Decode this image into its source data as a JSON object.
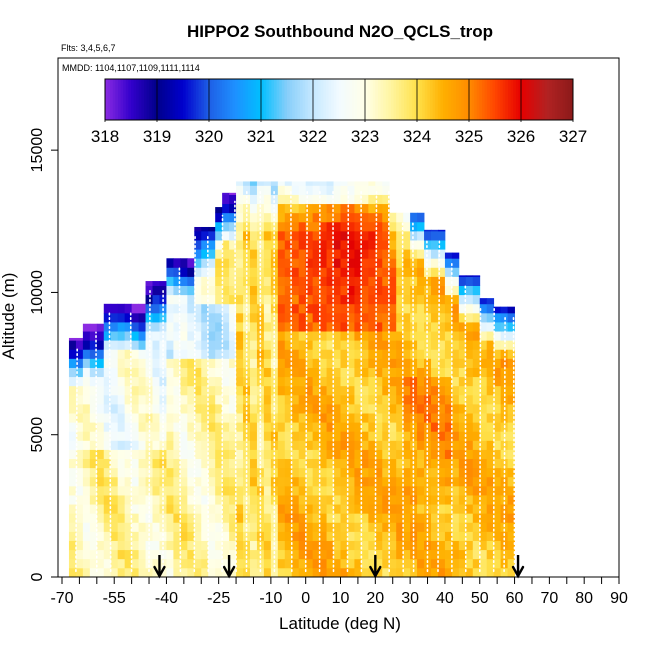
{
  "chart_data": {
    "type": "heatmap",
    "title": "HIPPO2 Southbound N2O_QCLS_trop",
    "subtitle_lines": [
      "Flts: 3,4,5,6,7",
      "MMDD: 1104,1107,1109,1111,1114"
    ],
    "xlabel": "Latitude (deg N)",
    "ylabel": "Altitude (m)",
    "xlim": [
      -70,
      90
    ],
    "ylim": [
      0,
      17500
    ],
    "x_ticks": [
      -70,
      -55,
      -40,
      -25,
      -10,
      0,
      10,
      20,
      30,
      40,
      50,
      60,
      70,
      80,
      90
    ],
    "x_tick_labels": [
      "-70",
      "-55",
      "-40",
      "-25",
      "-10",
      "0",
      "10",
      "20",
      "30",
      "40",
      "50",
      "60",
      "70",
      "80",
      "90"
    ],
    "x_minor_ticks": [
      -65,
      -60,
      -50,
      -45,
      -35,
      -30,
      -20,
      -15,
      -5,
      5,
      15,
      25,
      35,
      45,
      55,
      65,
      75,
      85
    ],
    "y_ticks": [
      0,
      5000,
      10000,
      15000
    ],
    "y_tick_labels": [
      "0",
      "5000",
      "10000",
      "15000"
    ],
    "colorbar": {
      "labels": [
        "318",
        "319",
        "320",
        "321",
        "322",
        "323",
        "324",
        "325",
        "326",
        "327"
      ],
      "range": [
        318,
        327
      ],
      "stops": [
        {
          "value": 318.0,
          "color": "#8B2BE2"
        },
        {
          "value": 318.5,
          "color": "#3300CC"
        },
        {
          "value": 319.0,
          "color": "#00008B"
        },
        {
          "value": 319.5,
          "color": "#0000CD"
        },
        {
          "value": 320.0,
          "color": "#1E5FE6"
        },
        {
          "value": 320.5,
          "color": "#1E90FF"
        },
        {
          "value": 321.0,
          "color": "#00BFFF"
        },
        {
          "value": 321.5,
          "color": "#87CEFA"
        },
        {
          "value": 322.0,
          "color": "#C6E8FF"
        },
        {
          "value": 322.5,
          "color": "#F2FBFF"
        },
        {
          "value": 323.0,
          "color": "#FFFFE8"
        },
        {
          "value": 323.5,
          "color": "#FFF5A0"
        },
        {
          "value": 324.0,
          "color": "#FFE14A"
        },
        {
          "value": 324.5,
          "color": "#FFB000"
        },
        {
          "value": 325.0,
          "color": "#FF8C00"
        },
        {
          "value": 325.5,
          "color": "#FF4500"
        },
        {
          "value": 326.0,
          "color": "#E60000"
        },
        {
          "value": 326.5,
          "color": "#B22222"
        },
        {
          "value": 327.0,
          "color": "#8B1A1A"
        }
      ]
    },
    "arrow_latitudes": [
      -42,
      -22,
      20,
      61
    ],
    "profile_latitudes": [
      -66,
      -60,
      -56,
      -50,
      -45,
      -41,
      -36,
      -32,
      -28,
      -24,
      -20,
      -17,
      -13,
      -9,
      -4,
      0,
      4,
      8,
      12,
      16,
      20,
      24,
      28,
      31,
      35,
      38,
      42,
      46,
      50,
      54,
      57,
      60
    ],
    "grid": false
  }
}
